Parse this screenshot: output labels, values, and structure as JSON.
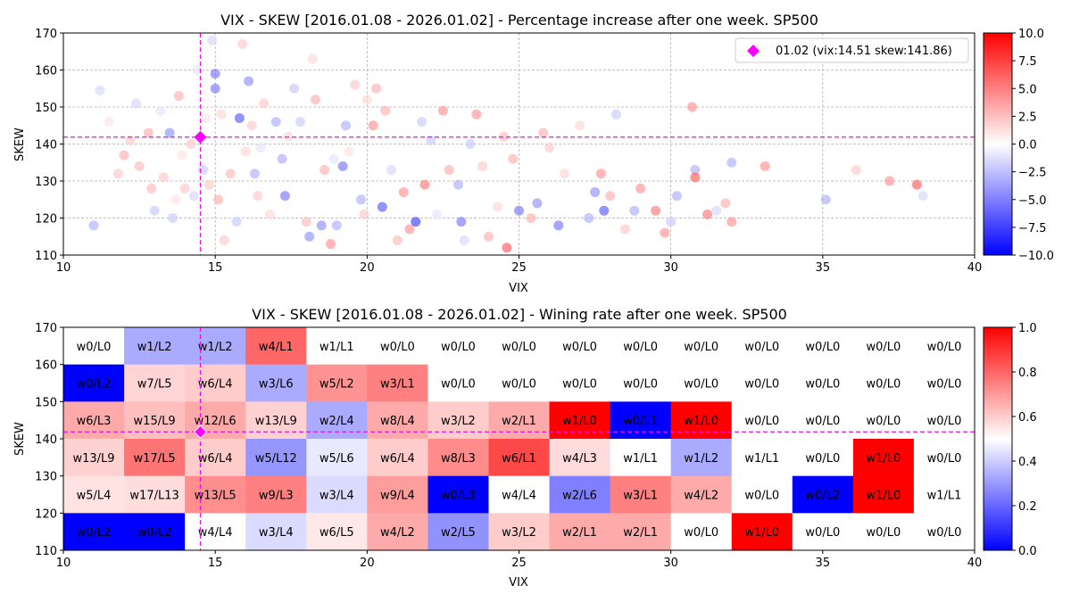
{
  "chart_data": [
    {
      "type": "scatter",
      "title": "VIX - SKEW [2016.01.08 - 2026.01.02]  - Percentage increase after one week. SP500",
      "xlabel": "VIX",
      "ylabel": "SKEW",
      "xlim": [
        10,
        40
      ],
      "ylim": [
        110,
        170
      ],
      "x_ticks": [
        "10",
        "15",
        "20",
        "25",
        "30",
        "35",
        "40"
      ],
      "y_ticks": [
        "110",
        "120",
        "130",
        "140",
        "150",
        "160",
        "170"
      ],
      "grid": true,
      "colorbar": {
        "cmap": "bwr",
        "range": [
          -10,
          10
        ],
        "ticks": [
          "10.0",
          "7.5",
          "5.0",
          "2.5",
          "0.0",
          "−2.5",
          "−5.0",
          "−7.5",
          "−10.0"
        ]
      },
      "legend": {
        "position": "top-right",
        "entries": [
          {
            "marker": "diamond",
            "color": "#ff00ff",
            "label": "01.02 (vix:14.51 skew:141.86)"
          }
        ]
      },
      "highlight": {
        "vix": 14.51,
        "skew": 141.86,
        "color": "#ff00ff"
      },
      "points_note": "approximate positions read from figure; c = weekly % change",
      "points": [
        [
          11.0,
          118,
          -3
        ],
        [
          11.2,
          154.5,
          -1.5
        ],
        [
          11.5,
          146,
          1
        ],
        [
          11.8,
          132,
          2
        ],
        [
          12.0,
          137,
          3
        ],
        [
          12.2,
          141,
          2
        ],
        [
          12.4,
          151,
          -1.5
        ],
        [
          12.5,
          134,
          2.5
        ],
        [
          12.8,
          143,
          3
        ],
        [
          12.9,
          128,
          2.5
        ],
        [
          13.0,
          122,
          -2
        ],
        [
          13.2,
          149,
          -1
        ],
        [
          13.3,
          131,
          2
        ],
        [
          13.5,
          143,
          -4
        ],
        [
          13.6,
          120,
          -2
        ],
        [
          13.7,
          125,
          1
        ],
        [
          13.8,
          153,
          3
        ],
        [
          13.9,
          137,
          1
        ],
        [
          14.0,
          128,
          2
        ],
        [
          14.2,
          140,
          2
        ],
        [
          14.3,
          126,
          -1.5
        ],
        [
          14.4,
          160,
          -1
        ],
        [
          14.6,
          133,
          -2
        ],
        [
          14.7,
          147,
          1
        ],
        [
          14.8,
          129,
          2
        ],
        [
          14.9,
          168,
          -1.5
        ],
        [
          15.0,
          155,
          -5
        ],
        [
          15.0,
          159,
          -5
        ],
        [
          15.1,
          125,
          3
        ],
        [
          15.2,
          148,
          1.5
        ],
        [
          15.3,
          114,
          2
        ],
        [
          15.5,
          132,
          2.5
        ],
        [
          15.7,
          119,
          -2
        ],
        [
          15.8,
          147,
          -6
        ],
        [
          15.9,
          167,
          2
        ],
        [
          16.0,
          138,
          1.5
        ],
        [
          16.1,
          157,
          -4
        ],
        [
          16.2,
          145,
          2
        ],
        [
          16.3,
          132,
          -3
        ],
        [
          16.4,
          126,
          2
        ],
        [
          16.5,
          139,
          -1
        ],
        [
          16.6,
          151,
          2
        ],
        [
          16.8,
          121,
          1.5
        ],
        [
          17.0,
          146,
          -3
        ],
        [
          17.2,
          136,
          -3
        ],
        [
          17.3,
          126,
          -5
        ],
        [
          17.4,
          142,
          1.5
        ],
        [
          17.6,
          155,
          -2
        ],
        [
          17.8,
          146,
          -2
        ],
        [
          18.0,
          119,
          2.5
        ],
        [
          18.1,
          115,
          -4
        ],
        [
          18.2,
          163,
          1.5
        ],
        [
          18.3,
          152,
          3
        ],
        [
          18.5,
          118,
          -4
        ],
        [
          18.6,
          133,
          3
        ],
        [
          18.8,
          113,
          4
        ],
        [
          18.9,
          136,
          -1
        ],
        [
          19.0,
          118,
          -3
        ],
        [
          19.2,
          134,
          -5
        ],
        [
          19.3,
          145,
          -3
        ],
        [
          19.4,
          138,
          1
        ],
        [
          19.6,
          156,
          2
        ],
        [
          19.8,
          125,
          -3
        ],
        [
          19.9,
          121,
          2
        ],
        [
          20.0,
          152,
          1.5
        ],
        [
          20.2,
          145,
          4
        ],
        [
          20.3,
          155,
          3
        ],
        [
          20.5,
          123,
          -6
        ],
        [
          20.6,
          149,
          3
        ],
        [
          20.8,
          133,
          -1.5
        ],
        [
          21.0,
          114,
          2.5
        ],
        [
          21.2,
          127,
          4
        ],
        [
          21.4,
          117,
          4
        ],
        [
          21.6,
          119,
          -7
        ],
        [
          21.8,
          146,
          -2
        ],
        [
          21.9,
          129,
          5
        ],
        [
          22.1,
          141,
          -2
        ],
        [
          22.3,
          121,
          -1
        ],
        [
          22.5,
          149,
          4
        ],
        [
          22.7,
          133,
          3
        ],
        [
          23.0,
          129,
          -3
        ],
        [
          23.1,
          119,
          -5
        ],
        [
          23.2,
          114,
          -1.5
        ],
        [
          23.4,
          140,
          -2
        ],
        [
          23.6,
          148,
          4
        ],
        [
          23.8,
          134,
          2
        ],
        [
          24.0,
          115,
          3
        ],
        [
          24.3,
          123,
          1.5
        ],
        [
          24.5,
          142,
          2.5
        ],
        [
          24.6,
          112,
          6
        ],
        [
          24.8,
          136,
          3
        ],
        [
          25.0,
          122,
          -5
        ],
        [
          25.4,
          120,
          3
        ],
        [
          25.6,
          124,
          -4
        ],
        [
          25.8,
          143,
          3
        ],
        [
          26.0,
          139,
          2
        ],
        [
          26.3,
          118,
          -5
        ],
        [
          26.5,
          132,
          1.5
        ],
        [
          27.0,
          145,
          1.5
        ],
        [
          27.3,
          120,
          -3
        ],
        [
          27.5,
          127,
          -4
        ],
        [
          27.7,
          132,
          4
        ],
        [
          27.8,
          122,
          -6
        ],
        [
          28.0,
          126,
          3
        ],
        [
          28.2,
          148,
          -2
        ],
        [
          28.5,
          117,
          2
        ],
        [
          28.8,
          122,
          -3
        ],
        [
          29.0,
          128,
          4
        ],
        [
          29.5,
          122,
          5
        ],
        [
          29.8,
          116,
          4
        ],
        [
          30.0,
          119,
          -2
        ],
        [
          30.2,
          126,
          -3
        ],
        [
          30.7,
          150,
          4
        ],
        [
          30.8,
          133,
          -3
        ],
        [
          30.8,
          131,
          6
        ],
        [
          31.2,
          121,
          5
        ],
        [
          31.5,
          122,
          -1.5
        ],
        [
          31.8,
          124,
          3
        ],
        [
          32.0,
          135,
          -3
        ],
        [
          32.0,
          119,
          4
        ],
        [
          33.1,
          134,
          4
        ],
        [
          35.1,
          125,
          -3
        ],
        [
          36.1,
          133,
          2
        ],
        [
          37.2,
          130,
          4
        ],
        [
          38.1,
          129,
          6
        ],
        [
          38.3,
          126,
          -1.5
        ]
      ]
    },
    {
      "type": "heatmap",
      "title": "VIX - SKEW [2016.01.08 - 2026.01.02]  - Wining rate after one week. SP500",
      "xlabel": "VIX",
      "ylabel": "SKEW",
      "xlim": [
        10,
        40
      ],
      "ylim": [
        110,
        170
      ],
      "x_ticks": [
        "10",
        "15",
        "20",
        "25",
        "30",
        "35",
        "40"
      ],
      "y_ticks": [
        "110",
        "120",
        "130",
        "140",
        "150",
        "160",
        "170"
      ],
      "x_bin_edges": [
        10,
        12,
        14,
        16,
        18,
        20,
        22,
        24,
        26,
        28,
        30,
        32,
        34,
        36,
        38,
        40
      ],
      "y_bin_edges": [
        170,
        160,
        150,
        140,
        130,
        120,
        110
      ],
      "colorbar": {
        "cmap": "bwr",
        "range": [
          0,
          1
        ],
        "ticks": [
          "1.0",
          "0.8",
          "0.6",
          "0.4",
          "0.2",
          "0.0"
        ]
      },
      "highlight": {
        "vix": 14.51,
        "skew": 141.86,
        "color": "#ff00ff"
      },
      "rows_top_to_bottom": [
        [
          "w0/L0",
          "w1/L2",
          "w1/L2",
          "w4/L1",
          "w1/L1",
          "w0/L0",
          "w0/L0",
          "w0/L0",
          "w0/L0",
          "w0/L0",
          "w0/L0",
          "w0/L0",
          "w0/L0",
          "w0/L0",
          "w0/L0"
        ],
        [
          "w0/L2",
          "w7/L5",
          "w6/L4",
          "w3/L6",
          "w5/L2",
          "w3/L1",
          "w0/L0",
          "w0/L0",
          "w0/L0",
          "w0/L0",
          "w0/L0",
          "w0/L0",
          "w0/L0",
          "w0/L0",
          "w0/L0"
        ],
        [
          "w6/L3",
          "w15/L9",
          "w12/L6",
          "w13/L9",
          "w2/L4",
          "w8/L4",
          "w3/L2",
          "w2/L1",
          "w1/L0",
          "w0/L1",
          "w1/L0",
          "w0/L0",
          "w0/L0",
          "w0/L0",
          "w0/L0"
        ],
        [
          "w13/L9",
          "w17/L5",
          "w6/L4",
          "w5/L12",
          "w5/L6",
          "w6/L4",
          "w8/L3",
          "w6/L1",
          "w4/L3",
          "w1/L1",
          "w1/L2",
          "w1/L1",
          "w0/L0",
          "w1/L0",
          "w0/L0"
        ],
        [
          "w5/L4",
          "w17/L13",
          "w13/L5",
          "w9/L3",
          "w3/L4",
          "w9/L4",
          "w0/L3",
          "w4/L4",
          "w2/L6",
          "w3/L1",
          "w4/L2",
          "w0/L0",
          "w0/L2",
          "w1/L0",
          "w1/L1"
        ],
        [
          "w0/L2",
          "w0/L2",
          "w4/L4",
          "w3/L4",
          "w6/L5",
          "w4/L2",
          "w2/L5",
          "w3/L2",
          "w2/L1",
          "w2/L1",
          "w0/L0",
          "w1/L0",
          "w0/L0",
          "w0/L0",
          "w0/L0"
        ]
      ]
    }
  ]
}
